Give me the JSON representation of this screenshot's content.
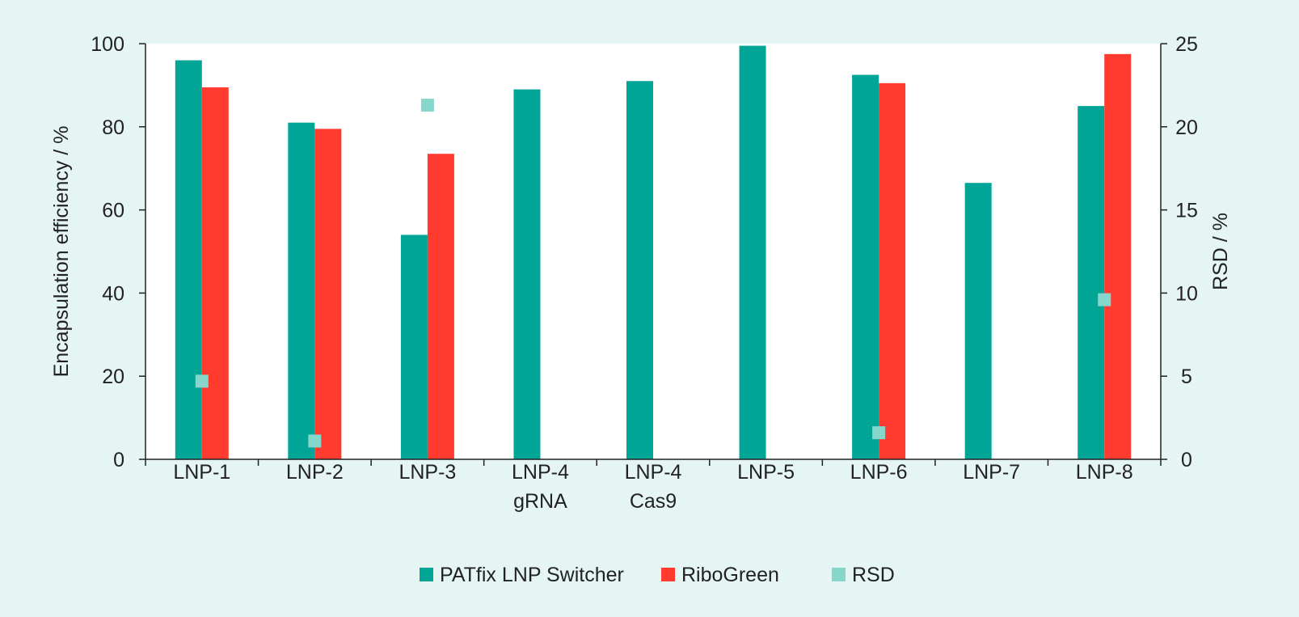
{
  "chart_data": {
    "type": "bar",
    "categories": [
      [
        "LNP-1"
      ],
      [
        "LNP-2"
      ],
      [
        "LNP-3"
      ],
      [
        "LNP-4",
        "gRNA"
      ],
      [
        "LNP-4",
        "Cas9"
      ],
      [
        "LNP-5"
      ],
      [
        "LNP-6"
      ],
      [
        "LNP-7"
      ],
      [
        "LNP-8"
      ]
    ],
    "series": [
      {
        "name": "PATfix LNP Switcher",
        "axis": "left",
        "kind": "bar",
        "color": "#00a596",
        "values": [
          96,
          81,
          54,
          89,
          91,
          99.5,
          92.5,
          66.5,
          85
        ]
      },
      {
        "name": "RiboGreen",
        "axis": "left",
        "kind": "bar",
        "color": "#ff3b30",
        "values": [
          89.5,
          79.5,
          73.5,
          null,
          null,
          null,
          90.5,
          null,
          97.5
        ]
      },
      {
        "name": "RSD",
        "axis": "right",
        "kind": "point",
        "color": "#86d6cc",
        "values": [
          4.7,
          1.1,
          21.3,
          null,
          null,
          null,
          1.6,
          null,
          9.6
        ]
      }
    ],
    "ylabel": "Encapsulation efficiency / %",
    "y2label": "RSD / %",
    "ylim": [
      0,
      100
    ],
    "y2lim": [
      0,
      25
    ],
    "yticks": [
      0,
      20,
      40,
      60,
      80,
      100
    ],
    "y2ticks": [
      0,
      5,
      10,
      15,
      20,
      25
    ],
    "legend_position": "bottom-center",
    "grid": false
  }
}
